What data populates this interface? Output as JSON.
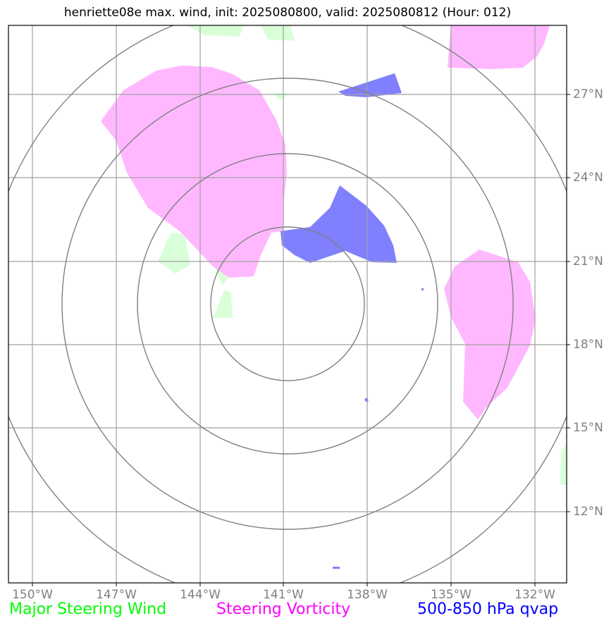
{
  "title": "henriette08e max. wind, init: 2025080800, valid: 2025080812 (Hour: 012)",
  "longitude_labels": [
    "150°W",
    "147°W",
    "144°W",
    "141°W",
    "138°W",
    "135°W",
    "132°W"
  ],
  "latitude_labels": [
    "27°N",
    "24°N",
    "21°N",
    "18°N",
    "15°N",
    "12°N"
  ],
  "legend": [
    {
      "label": "Major Steering Wind",
      "color": "#00ff00"
    },
    {
      "label": "Steering Vorticity",
      "color": "#ff00ff"
    },
    {
      "label": "500-850 hPa qvap",
      "color": "#0000ff"
    }
  ],
  "colors": {
    "frame": "#000000",
    "gridlines": "#a0a0a0",
    "range_rings": "#808080",
    "steering_wind_fill": "#d9ffd9",
    "vorticity_fill": "#ffb8ff",
    "qvap_fill": "#8080ff"
  }
}
